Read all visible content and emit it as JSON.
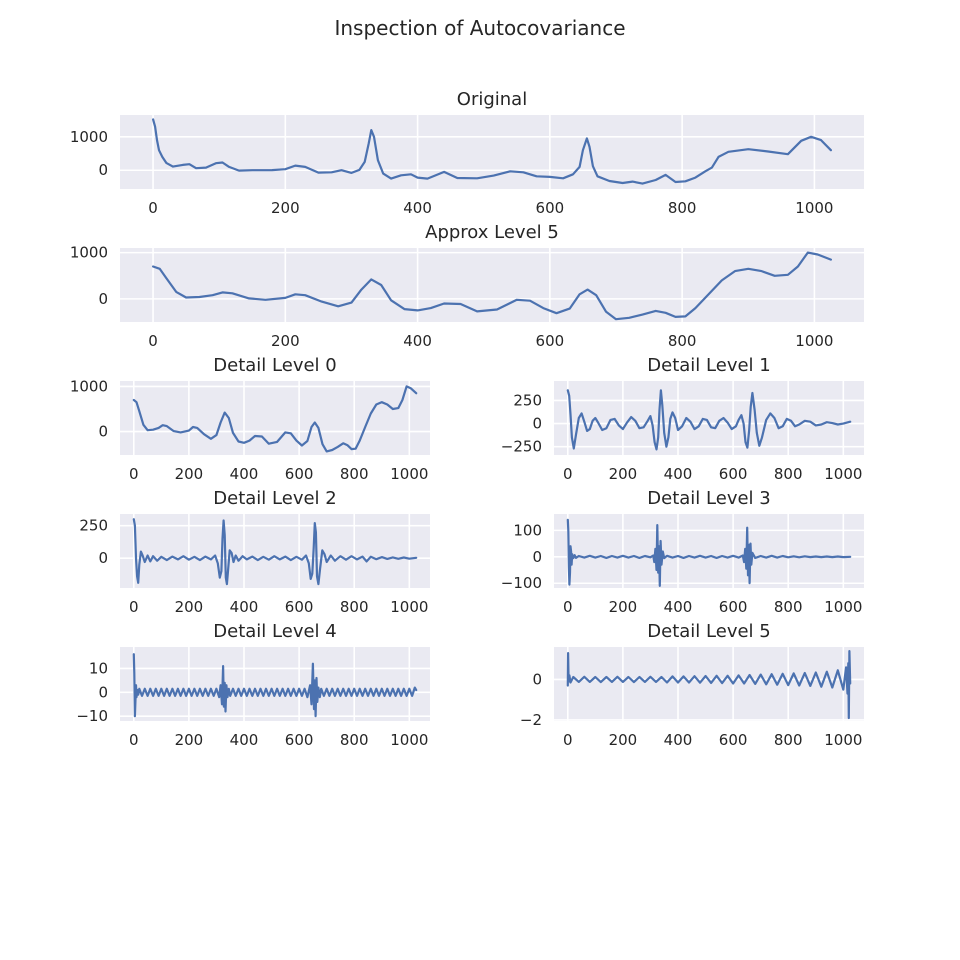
{
  "figure": {
    "title": "Inspection of Autocovariance"
  },
  "colors": {
    "line": "#4c72b0",
    "axes_bg": "#eaeaf2",
    "grid": "#ffffff",
    "text": "#262626"
  },
  "chart_data": [
    {
      "type": "line",
      "title": "Original",
      "xlim": [
        -50,
        1075
      ],
      "ylim": [
        -560,
        1650
      ],
      "xticks": [
        0,
        200,
        400,
        600,
        800,
        1000
      ],
      "yticks": [
        0,
        1000
      ],
      "grid": true,
      "x": [
        0,
        3,
        6,
        9,
        14,
        20,
        30,
        45,
        55,
        65,
        80,
        95,
        105,
        115,
        130,
        150,
        180,
        200,
        215,
        230,
        250,
        270,
        285,
        300,
        312,
        320,
        326,
        330,
        334,
        340,
        348,
        360,
        375,
        390,
        400,
        415,
        440,
        460,
        490,
        515,
        540,
        560,
        580,
        600,
        620,
        635,
        645,
        650,
        656,
        660,
        665,
        672,
        690,
        710,
        725,
        740,
        760,
        775,
        790,
        805,
        820,
        835,
        845,
        855,
        870,
        900,
        930,
        960,
        980,
        995,
        1010,
        1025
      ],
      "y": [
        1520,
        1300,
        900,
        600,
        400,
        220,
        110,
        160,
        180,
        60,
        80,
        210,
        230,
        100,
        -10,
        0,
        5,
        30,
        140,
        100,
        -70,
        -60,
        0,
        -80,
        10,
        250,
        800,
        1200,
        1000,
        300,
        -100,
        -250,
        -150,
        -120,
        -220,
        -250,
        -50,
        -230,
        -240,
        -160,
        -30,
        -60,
        -180,
        -200,
        -240,
        -120,
        100,
        600,
        950,
        700,
        120,
        -180,
        -320,
        -380,
        -340,
        -400,
        -290,
        -140,
        -350,
        -330,
        -220,
        -30,
        80,
        400,
        550,
        630,
        560,
        480,
        880,
        1000,
        900,
        600
      ]
    },
    {
      "type": "line",
      "title": "Approx Level 5",
      "xlim": [
        -50,
        1075
      ],
      "ylim": [
        -500,
        1100
      ],
      "xticks": [
        0,
        200,
        400,
        600,
        800,
        1000
      ],
      "yticks": [
        0,
        1000
      ],
      "grid": true,
      "x": [
        0,
        10,
        20,
        35,
        50,
        70,
        90,
        105,
        120,
        145,
        170,
        200,
        215,
        230,
        255,
        280,
        300,
        315,
        330,
        345,
        360,
        380,
        400,
        420,
        440,
        465,
        490,
        520,
        550,
        570,
        590,
        610,
        630,
        645,
        657,
        670,
        685,
        700,
        720,
        740,
        760,
        775,
        790,
        805,
        820,
        840,
        860,
        880,
        900,
        920,
        940,
        960,
        975,
        990,
        1005,
        1025
      ],
      "y": [
        700,
        650,
        450,
        150,
        30,
        40,
        80,
        140,
        120,
        10,
        -20,
        20,
        100,
        80,
        -60,
        -160,
        -80,
        200,
        420,
        300,
        -30,
        -220,
        -250,
        -200,
        -100,
        -110,
        -270,
        -230,
        -20,
        -40,
        -200,
        -310,
        -210,
        100,
        200,
        80,
        -280,
        -440,
        -410,
        -340,
        -260,
        -300,
        -390,
        -380,
        -200,
        100,
        400,
        600,
        650,
        600,
        500,
        520,
        700,
        1000,
        960,
        850
      ]
    },
    {
      "type": "line",
      "title": "Detail Level 0",
      "xlim": [
        -50,
        1075
      ],
      "ylim": [
        -520,
        1120
      ],
      "xticks": [
        0,
        200,
        400,
        600,
        800,
        1000
      ],
      "yticks": [
        0,
        1000
      ],
      "grid": true,
      "x": [
        0,
        10,
        20,
        35,
        50,
        70,
        90,
        105,
        120,
        145,
        170,
        200,
        215,
        230,
        255,
        280,
        300,
        315,
        330,
        345,
        360,
        380,
        400,
        420,
        440,
        465,
        490,
        520,
        550,
        570,
        590,
        610,
        630,
        645,
        657,
        670,
        685,
        700,
        720,
        740,
        760,
        775,
        790,
        805,
        820,
        840,
        860,
        880,
        900,
        920,
        940,
        960,
        975,
        990,
        1005,
        1025
      ],
      "y": [
        700,
        650,
        450,
        150,
        30,
        40,
        80,
        140,
        120,
        10,
        -20,
        20,
        100,
        80,
        -60,
        -160,
        -80,
        200,
        420,
        300,
        -30,
        -220,
        -250,
        -200,
        -100,
        -110,
        -270,
        -230,
        -20,
        -40,
        -200,
        -310,
        -210,
        100,
        200,
        80,
        -280,
        -440,
        -410,
        -340,
        -260,
        -300,
        -390,
        -380,
        -200,
        100,
        400,
        600,
        650,
        600,
        500,
        520,
        700,
        1000,
        960,
        850
      ]
    },
    {
      "type": "line",
      "title": "Detail Level 1",
      "xlim": [
        -50,
        1075
      ],
      "ylim": [
        -340,
        460
      ],
      "xticks": [
        0,
        200,
        400,
        600,
        800,
        1000
      ],
      "yticks": [
        -250,
        0,
        250
      ],
      "grid": true,
      "x": [
        0,
        5,
        10,
        15,
        22,
        30,
        40,
        50,
        60,
        70,
        80,
        90,
        100,
        110,
        125,
        140,
        155,
        170,
        185,
        200,
        215,
        230,
        245,
        260,
        275,
        290,
        300,
        308,
        315,
        322,
        328,
        333,
        338,
        343,
        350,
        358,
        365,
        372,
        380,
        390,
        400,
        415,
        430,
        445,
        460,
        475,
        490,
        505,
        520,
        535,
        550,
        565,
        580,
        595,
        610,
        620,
        630,
        638,
        645,
        652,
        658,
        664,
        670,
        678,
        686,
        695,
        705,
        720,
        735,
        750,
        765,
        780,
        795,
        810,
        825,
        840,
        860,
        880,
        900,
        920,
        940,
        960,
        980,
        1000,
        1025
      ],
      "y": [
        360,
        300,
        100,
        -150,
        -270,
        -120,
        60,
        110,
        20,
        -80,
        -60,
        30,
        60,
        10,
        -70,
        -50,
        40,
        50,
        -20,
        -60,
        10,
        70,
        30,
        -50,
        -40,
        30,
        80,
        -20,
        -200,
        -280,
        -150,
        150,
        360,
        200,
        -100,
        -250,
        -150,
        50,
        120,
        60,
        -70,
        -30,
        60,
        20,
        -60,
        -30,
        50,
        40,
        -40,
        -50,
        30,
        60,
        10,
        -60,
        -30,
        40,
        90,
        0,
        -200,
        -260,
        -80,
        180,
        330,
        150,
        -100,
        -240,
        -150,
        40,
        110,
        60,
        -50,
        -30,
        50,
        30,
        -30,
        -10,
        30,
        20,
        -20,
        -10,
        15,
        5,
        -10,
        0,
        20
      ]
    },
    {
      "type": "line",
      "title": "Detail Level 2",
      "xlim": [
        -50,
        1075
      ],
      "ylim": [
        -230,
        340
      ],
      "xticks": [
        0,
        200,
        400,
        600,
        800,
        1000
      ],
      "yticks": [
        0,
        250
      ],
      "grid": true,
      "x": [
        0,
        4,
        8,
        12,
        16,
        20,
        26,
        32,
        40,
        50,
        60,
        70,
        85,
        100,
        120,
        140,
        160,
        180,
        200,
        220,
        240,
        260,
        280,
        295,
        305,
        312,
        318,
        322,
        326,
        330,
        334,
        338,
        342,
        348,
        355,
        362,
        370,
        380,
        395,
        410,
        430,
        450,
        470,
        490,
        510,
        530,
        550,
        570,
        590,
        610,
        625,
        635,
        642,
        648,
        653,
        657,
        661,
        665,
        670,
        676,
        684,
        692,
        700,
        715,
        730,
        750,
        770,
        790,
        810,
        830,
        845,
        860,
        880,
        900,
        920,
        940,
        960,
        980,
        1000,
        1025
      ],
      "y": [
        300,
        250,
        0,
        -140,
        -190,
        -50,
        50,
        20,
        -30,
        20,
        -25,
        15,
        -20,
        10,
        -15,
        12,
        -10,
        15,
        -12,
        10,
        -15,
        12,
        -10,
        20,
        -40,
        -150,
        -100,
        150,
        290,
        180,
        -150,
        -200,
        -100,
        60,
        40,
        -30,
        20,
        -20,
        15,
        -10,
        12,
        -15,
        10,
        -12,
        15,
        -10,
        12,
        -15,
        10,
        -12,
        20,
        -40,
        -160,
        -120,
        80,
        270,
        200,
        -140,
        -200,
        -80,
        60,
        30,
        -30,
        20,
        -20,
        15,
        -12,
        15,
        -10,
        12,
        -25,
        10,
        -8,
        8,
        -6,
        6,
        -5,
        5,
        -4,
        3
      ]
    },
    {
      "type": "line",
      "title": "Detail Level 3",
      "xlim": [
        -50,
        1075
      ],
      "ylim": [
        -118,
        162
      ],
      "xticks": [
        0,
        200,
        400,
        600,
        800,
        1000
      ],
      "yticks": [
        -100,
        0,
        100
      ],
      "grid": true,
      "x": [
        0,
        2,
        4,
        6,
        8,
        10,
        12,
        14,
        16,
        20,
        25,
        30,
        40,
        60,
        80,
        100,
        120,
        140,
        160,
        180,
        200,
        220,
        240,
        260,
        280,
        300,
        310,
        314,
        318,
        322,
        325,
        328,
        331,
        334,
        337,
        340,
        345,
        350,
        360,
        380,
        400,
        420,
        440,
        460,
        480,
        500,
        520,
        540,
        560,
        580,
        600,
        620,
        635,
        640,
        644,
        648,
        651,
        654,
        657,
        660,
        663,
        666,
        670,
        680,
        700,
        720,
        740,
        760,
        780,
        800,
        820,
        840,
        860,
        880,
        900,
        920,
        940,
        960,
        980,
        1000,
        1025
      ],
      "y": [
        140,
        100,
        -40,
        -105,
        -60,
        40,
        20,
        -30,
        10,
        -5,
        6,
        -4,
        3,
        -3,
        4,
        -3,
        3,
        -4,
        3,
        -3,
        4,
        -3,
        3,
        -4,
        3,
        -2,
        5,
        -20,
        30,
        -50,
        120,
        -60,
        40,
        -110,
        60,
        -30,
        20,
        -5,
        4,
        -3,
        3,
        -4,
        3,
        -3,
        4,
        -3,
        3,
        -4,
        3,
        -3,
        4,
        -3,
        5,
        -20,
        30,
        -45,
        110,
        -70,
        45,
        -100,
        50,
        -30,
        15,
        -4,
        3,
        -3,
        4,
        -3,
        3,
        -2,
        2,
        -2,
        2,
        -1,
        1,
        -1,
        1,
        -1,
        1,
        -1,
        0
      ]
    },
    {
      "type": "line",
      "title": "Detail Level 4",
      "xlim": [
        -50,
        1075
      ],
      "ylim": [
        -12,
        19
      ],
      "xticks": [
        0,
        200,
        400,
        600,
        800,
        1000
      ],
      "yticks": [
        -10,
        0,
        10
      ],
      "grid": true,
      "x": [
        0,
        2,
        4,
        6,
        8,
        10,
        13,
        16,
        20,
        30,
        40,
        50,
        60,
        70,
        80,
        90,
        100,
        110,
        120,
        130,
        140,
        150,
        160,
        170,
        180,
        190,
        200,
        210,
        220,
        230,
        240,
        250,
        260,
        270,
        280,
        290,
        300,
        310,
        315,
        320,
        324,
        327,
        330,
        333,
        336,
        340,
        345,
        350,
        360,
        370,
        380,
        390,
        400,
        410,
        420,
        430,
        440,
        450,
        460,
        470,
        480,
        490,
        500,
        510,
        520,
        530,
        540,
        550,
        560,
        570,
        580,
        590,
        600,
        610,
        620,
        630,
        640,
        645,
        650,
        654,
        657,
        660,
        663,
        666,
        670,
        675,
        680,
        690,
        700,
        710,
        720,
        730,
        740,
        750,
        760,
        770,
        780,
        790,
        800,
        810,
        820,
        830,
        840,
        850,
        860,
        870,
        880,
        890,
        900,
        910,
        920,
        930,
        940,
        950,
        960,
        970,
        980,
        990,
        1000,
        1010,
        1020,
        1025
      ],
      "y": [
        16,
        8,
        -10,
        -4,
        3,
        -2,
        1,
        -1,
        1.5,
        -1.5,
        1.5,
        -1.5,
        1.5,
        -1.5,
        1.5,
        -1.5,
        1.5,
        -1.5,
        1.5,
        -1.5,
        1.5,
        -1.5,
        1.5,
        -1.5,
        1.5,
        -1.5,
        1.5,
        -1.5,
        1.5,
        -1.5,
        1.5,
        -1.5,
        1.5,
        -1.5,
        1.5,
        -1.5,
        1.5,
        -2,
        3,
        -5,
        11,
        -6,
        4,
        -8,
        3,
        -2,
        1.5,
        -1.5,
        1.5,
        -1.5,
        1.5,
        -1.5,
        1.5,
        -1.5,
        1.5,
        -1.5,
        1.5,
        -1.5,
        1.5,
        -1.5,
        1.5,
        -1.5,
        1.5,
        -1.5,
        1.5,
        -1.5,
        1.5,
        -1.5,
        1.5,
        -1.5,
        1.5,
        -1.5,
        1.5,
        -1.5,
        1.5,
        -2,
        3,
        -5,
        12,
        -7,
        5,
        -10,
        6,
        -4,
        2,
        -2,
        1.5,
        -1.5,
        1.5,
        -1.5,
        1.5,
        -1.5,
        1.5,
        -1.5,
        1.5,
        -1.5,
        1.5,
        -1.5,
        1.5,
        -1.5,
        1.5,
        -1.5,
        1.5,
        -1.5,
        1.5,
        -1.5,
        1.5,
        -1.5,
        1.5,
        -1.5,
        1.5,
        -1.5,
        1.5,
        -1.5,
        1.5,
        -1.5,
        1.5,
        -1.5,
        1.5,
        -1.5,
        2,
        1
      ]
    },
    {
      "type": "line",
      "title": "Detail Level 5",
      "xlim": [
        -50,
        1075
      ],
      "ylim": [
        -2.05,
        1.6
      ],
      "xticks": [
        0,
        200,
        400,
        600,
        800,
        1000
      ],
      "yticks": [
        -2,
        0
      ],
      "grid": true,
      "x": [
        0,
        1,
        3,
        6,
        10,
        20,
        40,
        60,
        80,
        100,
        120,
        140,
        160,
        180,
        200,
        220,
        240,
        260,
        280,
        300,
        320,
        340,
        360,
        380,
        400,
        420,
        440,
        460,
        480,
        500,
        520,
        540,
        560,
        580,
        600,
        620,
        640,
        660,
        680,
        700,
        720,
        740,
        760,
        780,
        800,
        820,
        840,
        860,
        880,
        900,
        920,
        940,
        960,
        980,
        1000,
        1010,
        1015,
        1018,
        1020,
        1022,
        1025
      ],
      "y": [
        -0.3,
        1.3,
        -0.1,
        0.2,
        -0.15,
        0.12,
        -0.12,
        0.13,
        -0.12,
        0.12,
        -0.13,
        0.12,
        -0.12,
        0.13,
        -0.12,
        0.12,
        -0.13,
        0.12,
        -0.12,
        0.13,
        -0.12,
        0.12,
        -0.15,
        0.15,
        -0.15,
        0.15,
        -0.15,
        0.16,
        -0.16,
        0.17,
        -0.17,
        0.18,
        -0.18,
        0.18,
        -0.2,
        0.2,
        -0.2,
        0.22,
        -0.22,
        0.24,
        -0.24,
        0.26,
        -0.26,
        0.28,
        -0.28,
        0.3,
        -0.3,
        0.32,
        -0.32,
        0.34,
        -0.36,
        0.38,
        -0.4,
        0.45,
        -0.5,
        0.6,
        -0.7,
        0.8,
        -1.9,
        1.4,
        -0.2
      ]
    }
  ]
}
